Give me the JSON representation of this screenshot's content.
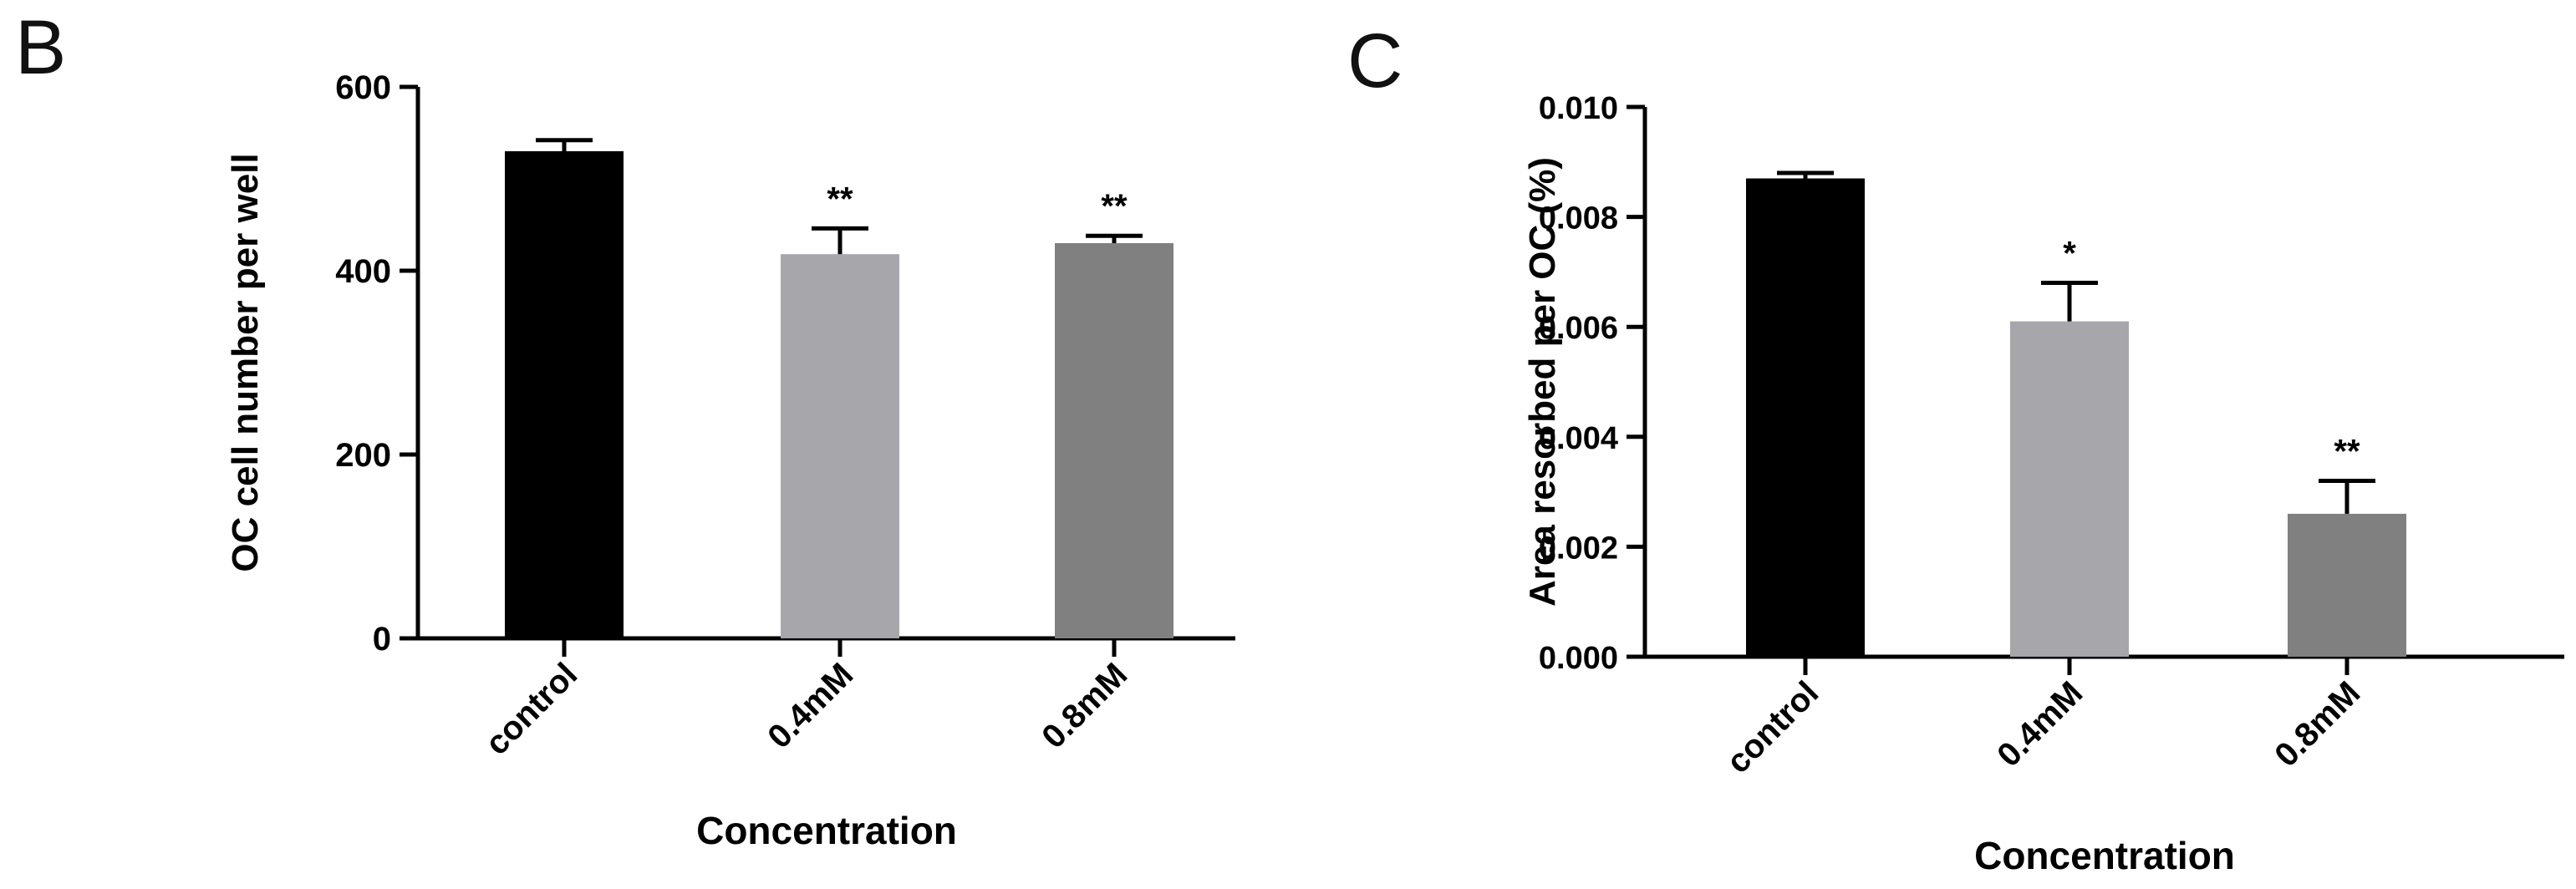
{
  "chart_data": [
    {
      "panel": "B",
      "type": "bar",
      "categories": [
        "control",
        "0.4mM",
        "0.8mM"
      ],
      "values": [
        530,
        418,
        430
      ],
      "errors": [
        12,
        28,
        8
      ],
      "annotations": [
        "",
        "**",
        "**"
      ],
      "bar_colors": [
        "#000000",
        "#a6a6ab",
        "#808080"
      ],
      "xlabel": "Concentration",
      "ylabel": "OC cell number per well",
      "ylim": [
        0,
        600
      ],
      "yticks": [
        0,
        200,
        400,
        600
      ],
      "ytick_labels": [
        "0",
        "200",
        "400",
        "600"
      ],
      "grid": false,
      "legend": "none"
    },
    {
      "panel": "C",
      "type": "bar",
      "categories": [
        "control",
        "0.4mM",
        "0.8mM"
      ],
      "values": [
        0.0087,
        0.0061,
        0.0026
      ],
      "errors": [
        0.0001,
        0.0007,
        0.0006
      ],
      "annotations": [
        "",
        "*",
        "**"
      ],
      "bar_colors": [
        "#000000",
        "#a6a6ab",
        "#808080"
      ],
      "xlabel": "Concentration",
      "ylabel": "Area resorbed per OC (%)",
      "ylim": [
        0,
        0.01
      ],
      "yticks": [
        0,
        0.002,
        0.004,
        0.006,
        0.008,
        0.01
      ],
      "ytick_labels": [
        "0.000",
        "0.002",
        "0.004",
        "0.006",
        "0.008",
        "0.010"
      ],
      "grid": false,
      "legend": "none"
    }
  ]
}
